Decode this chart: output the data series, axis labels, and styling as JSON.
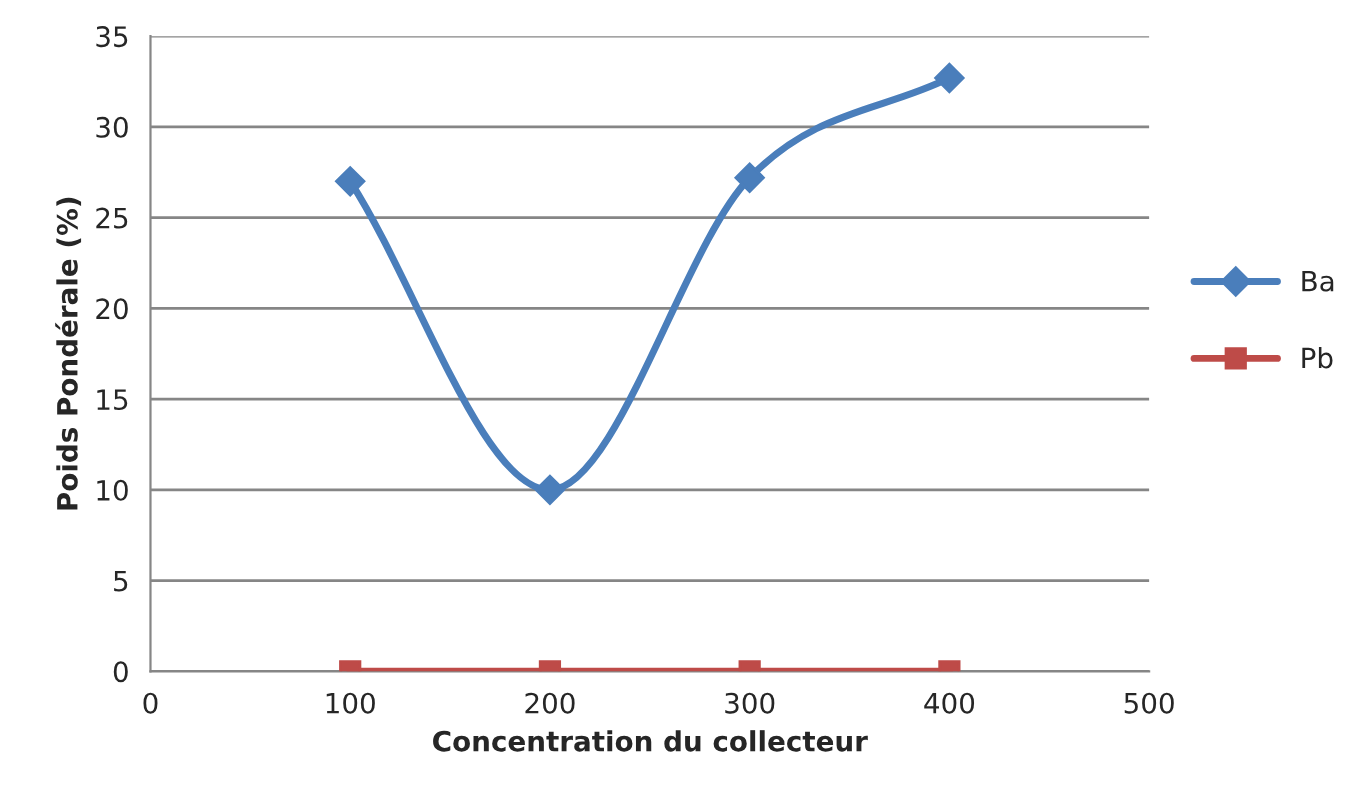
{
  "chart_data": {
    "type": "line",
    "xlabel": "Concentration du collecteur",
    "ylabel": "Poids Pondérale (%)",
    "x": [
      100,
      200,
      300,
      400
    ],
    "series": [
      {
        "name": "Ba",
        "color": "#4a7ebb",
        "marker": "diamond",
        "values": [
          27,
          10,
          27.2,
          32.7
        ]
      },
      {
        "name": "Pb",
        "color": "#be4b48",
        "marker": "square",
        "values": [
          0,
          0,
          0,
          0
        ]
      }
    ],
    "xlim": [
      0,
      500
    ],
    "xticks": [
      0,
      100,
      200,
      300,
      400,
      500
    ],
    "ylim": [
      0,
      35
    ],
    "yticks": [
      0,
      5,
      10,
      15,
      20,
      25,
      30,
      35
    ],
    "grid": "y",
    "legend": "right",
    "line_style": "solid"
  }
}
